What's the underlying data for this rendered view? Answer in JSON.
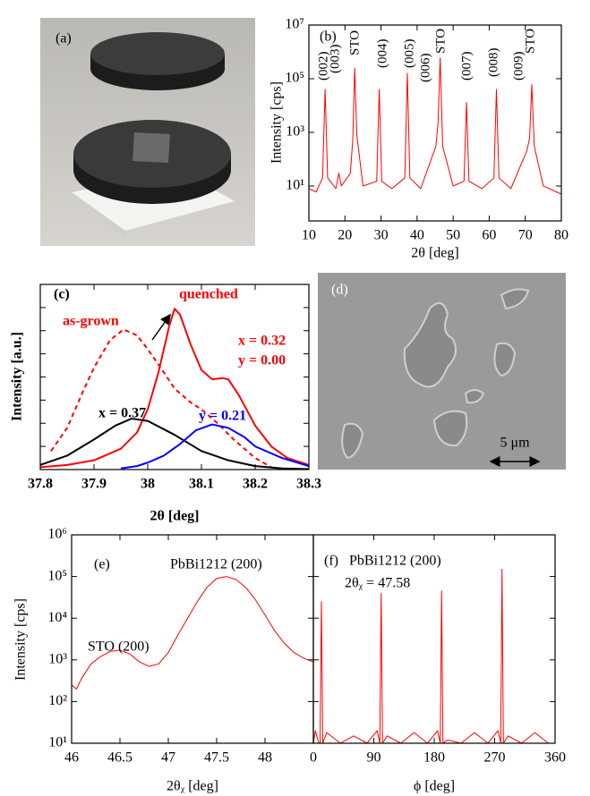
{
  "chart_data": [
    {
      "type": "image",
      "label": "(a)"
    },
    {
      "type": "line",
      "label": "(b)",
      "ylog": true,
      "xlabel": "2θ [deg]",
      "ylabel": "Intensity [cps]",
      "xlim": [
        10,
        80
      ],
      "xticks": [
        10,
        20,
        30,
        40,
        50,
        60,
        70,
        80
      ],
      "ylim": [
        0.5,
        10000000
      ],
      "yticks": [
        {
          "value": 10,
          "label": "10¹"
        },
        {
          "value": 1000,
          "label": "10³"
        },
        {
          "value": 100000,
          "label": "10⁵"
        },
        {
          "value": 10000000,
          "label": "10⁷"
        }
      ],
      "ytick_labels": true,
      "annotations": [
        "(002)",
        "(003)",
        "STO",
        "(004)",
        "(005)",
        "(006)",
        "STO",
        "(007)",
        "(008)",
        "(009)",
        "STO"
      ],
      "series": [
        {
          "color": "#ff0000",
          "x": [
            10,
            12,
            13.8,
            14.5,
            15.2,
            17.5,
            18.3,
            19,
            21.5,
            22.2,
            22.7,
            23.3,
            25,
            28.8,
            29.5,
            30.2,
            33,
            36.6,
            37.3,
            38,
            41,
            45.2,
            45.8,
            46.4,
            47.1,
            50,
            53,
            53.7,
            54.4,
            58,
            61.3,
            62,
            62.7,
            66,
            70.4,
            71.2,
            71.8,
            72.5,
            75,
            80
          ],
          "values": [
            8,
            6,
            20,
            40000,
            20,
            8,
            30,
            10,
            30,
            600,
            250000,
            800,
            10,
            15,
            40000,
            15,
            8,
            20,
            160000,
            20,
            8,
            300,
            2000,
            600000,
            300,
            10,
            15,
            13000,
            15,
            8,
            20,
            40000,
            20,
            8,
            200,
            600,
            60000,
            300,
            10,
            5
          ]
        }
      ]
    },
    {
      "type": "line",
      "label": "(c)",
      "ylog": false,
      "xlabel": "2θ [deg]",
      "ylabel": "Intensity [a.u.]",
      "xlim": [
        37.8,
        38.3
      ],
      "xticks": [
        37.8,
        37.9,
        38,
        38.1,
        38.2,
        38.3
      ],
      "ylim": [
        0,
        8
      ],
      "yticks": [
        0,
        1,
        2,
        3,
        4,
        5,
        6,
        7,
        8
      ],
      "ytick_labels": false,
      "annotations": [
        {
          "text": "x = 0.32",
          "color": "#ff0000"
        },
        {
          "text": "y = 0.00",
          "color": "#ff0000"
        }
      ],
      "series": [
        {
          "name": "as-grown",
          "color": "#ff0000",
          "dashed": true,
          "x": [
            37.82,
            37.85,
            37.88,
            37.9,
            37.93,
            37.955,
            37.98,
            38.0,
            38.03,
            38.05,
            38.08,
            38.1,
            38.13,
            38.16,
            38.2,
            38.23
          ],
          "values": [
            0.8,
            1.8,
            3.4,
            4.4,
            5.6,
            6.05,
            5.8,
            5.2,
            4.2,
            3.5,
            2.9,
            2.6,
            2.0,
            1.3,
            0.5,
            0.1
          ]
        },
        {
          "name": "quenched",
          "color": "#ff0000",
          "dashed": false,
          "x": [
            37.8,
            37.85,
            37.9,
            37.95,
            37.98,
            38.0,
            38.02,
            38.04,
            38.05,
            38.06,
            38.08,
            38.1,
            38.12,
            38.14,
            38.15,
            38.17,
            38.2,
            38.23,
            38.26,
            38.3
          ],
          "values": [
            0.1,
            0.2,
            0.4,
            0.9,
            1.6,
            2.6,
            4.2,
            6.2,
            6.95,
            6.7,
            5.4,
            4.3,
            3.9,
            3.95,
            3.9,
            3.2,
            1.9,
            1.0,
            0.5,
            0.2
          ]
        },
        {
          "name": "x = 0.37",
          "color": "#000000",
          "dashed": false,
          "x": [
            37.8,
            37.85,
            37.9,
            37.94,
            37.97,
            38.0,
            38.05,
            38.1,
            38.15,
            38.2,
            38.25,
            38.3
          ],
          "values": [
            0.2,
            0.6,
            1.3,
            1.9,
            2.2,
            2.1,
            1.5,
            0.8,
            0.4,
            0.15,
            0.05,
            0.02
          ]
        },
        {
          "name": "y = 0.21",
          "color": "#0000ff",
          "dashed": false,
          "x": [
            37.95,
            37.98,
            38.0,
            38.03,
            38.06,
            38.09,
            38.12,
            38.15,
            38.18,
            38.2,
            38.25,
            38.3
          ],
          "values": [
            0.05,
            0.15,
            0.3,
            0.6,
            1.1,
            1.7,
            1.95,
            1.8,
            1.4,
            1.0,
            0.5,
            0.15
          ]
        }
      ]
    },
    {
      "type": "image",
      "label": "(d)",
      "scale_bar": "5 μm"
    },
    {
      "type": "line",
      "label": "(e)",
      "ylog": true,
      "xlabel": "2θᵪ [deg]",
      "ylabel": "Intensity [cps]",
      "xlim": [
        46,
        48.5
      ],
      "xticks": [
        46,
        46.5,
        47,
        47.5,
        48
      ],
      "ylim": [
        10,
        1000000
      ],
      "yticks": [
        {
          "value": 10,
          "label": "10¹"
        },
        {
          "value": 100,
          "label": "10²"
        },
        {
          "value": 1000,
          "label": "10³"
        },
        {
          "value": 10000,
          "label": "10⁴"
        },
        {
          "value": 100000,
          "label": "10⁵"
        },
        {
          "value": 1000000,
          "label": "10⁶"
        }
      ],
      "ytick_labels": true,
      "annotations": [
        "PbBi1212 (200)",
        "STO (200)"
      ],
      "series": [
        {
          "color": "#ff0000",
          "x": [
            46,
            46.05,
            46.1,
            46.2,
            46.3,
            46.4,
            46.5,
            46.6,
            46.7,
            46.8,
            46.9,
            47.0,
            47.1,
            47.2,
            47.3,
            47.4,
            47.5,
            47.6,
            47.7,
            47.8,
            47.9,
            48.0,
            48.1,
            48.2,
            48.3,
            48.4,
            48.5
          ],
          "values": [
            250,
            200,
            350,
            800,
            1200,
            1600,
            1700,
            1400,
            900,
            700,
            800,
            1500,
            4000,
            10000,
            25000,
            55000,
            90000,
            100000,
            85000,
            55000,
            28000,
            12000,
            5000,
            2500,
            1500,
            1100,
            900
          ]
        }
      ]
    },
    {
      "type": "line",
      "label": "(f)",
      "ylog": true,
      "xlabel": "ϕ [deg]",
      "xlim": [
        0,
        360
      ],
      "xticks": [
        0,
        90,
        180,
        270,
        360
      ],
      "ylim": [
        10,
        1000000
      ],
      "yticks": [
        10,
        100,
        1000,
        10000,
        100000,
        1000000
      ],
      "ytick_labels": false,
      "annotations": [
        "PbBi1212 (200)",
        "2θᵪ = 47.58"
      ],
      "series": [
        {
          "color": "#ff0000",
          "x": [
            0,
            3,
            8,
            10,
            12,
            14,
            20,
            40,
            60,
            80,
            95,
            99,
            101,
            103,
            110,
            130,
            150,
            170,
            185,
            189,
            191,
            193,
            200,
            220,
            240,
            260,
            275,
            279,
            281,
            283,
            290,
            310,
            330,
            350,
            360
          ],
          "values": [
            10,
            20,
            10,
            10,
            25000,
            10,
            18,
            10,
            15,
            10,
            20,
            10,
            40000,
            10,
            15,
            10,
            18,
            10,
            20,
            10,
            45000,
            10,
            12,
            10,
            18,
            10,
            20,
            10,
            150000,
            10,
            15,
            10,
            18,
            10,
            10
          ]
        }
      ]
    }
  ]
}
